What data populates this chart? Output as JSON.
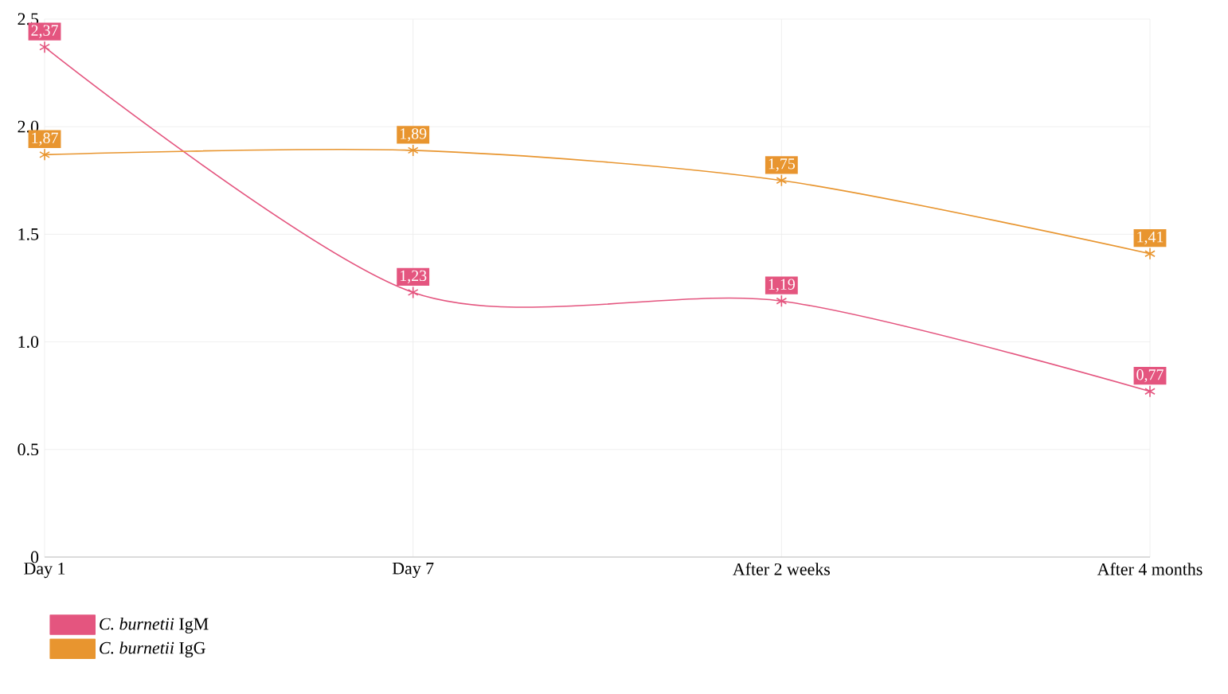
{
  "chart_data": {
    "type": "line",
    "categories": [
      "Day 1",
      "Day 7",
      "After 2 weeks",
      "After 4 months"
    ],
    "series": [
      {
        "name": "*C. burnetii* IgM",
        "color": "#e4557f",
        "values": [
          2.37,
          1.23,
          1.19,
          0.77
        ],
        "value_labels": [
          "2,37",
          "1,23",
          "1,19",
          "0,77"
        ]
      },
      {
        "name": "*C. burnetii* IgG",
        "color": "#e8952f",
        "values": [
          1.87,
          1.89,
          1.75,
          1.41
        ],
        "value_labels": [
          "1,87",
          "1,89",
          "1,75",
          "1,41"
        ]
      }
    ],
    "ylim": [
      0,
      2.5
    ],
    "yticks": [
      0,
      {
        "value": 0.5,
        "label": "0.5"
      },
      {
        "value": 1.0,
        "label": "1.0"
      },
      {
        "value": 1.5,
        "label": "1.5"
      },
      {
        "value": 2.0,
        "label": "2.0"
      },
      2.5
    ],
    "grid": true,
    "legend": "bottom left",
    "marker": "cross",
    "line_style": "solid"
  }
}
